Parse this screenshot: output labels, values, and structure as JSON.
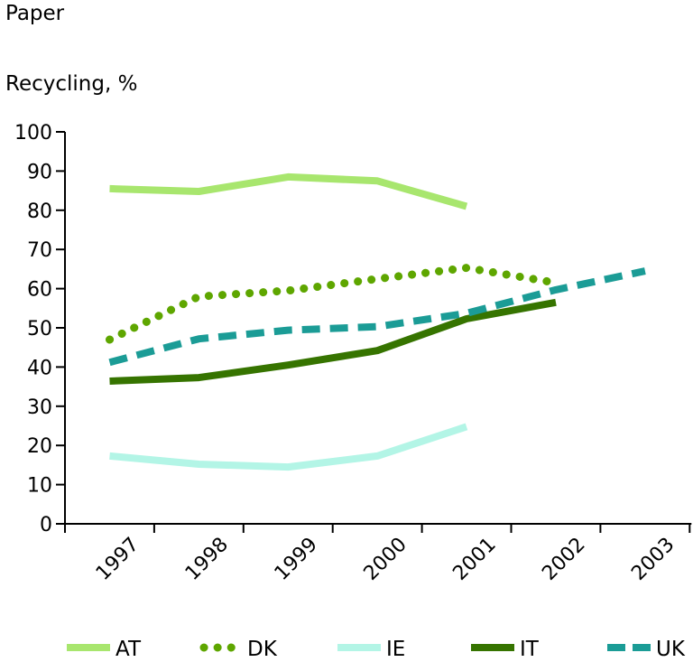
{
  "chart_data": {
    "type": "line",
    "title": "Paper",
    "ylabel": "Recycling, %",
    "xlabel": "",
    "categories": [
      "1997",
      "1998",
      "1999",
      "2000",
      "2001",
      "2002",
      "2003"
    ],
    "ylim": [
      0,
      100
    ],
    "yticks": [
      0,
      10,
      20,
      30,
      40,
      50,
      60,
      70,
      80,
      90,
      100
    ],
    "grid": false,
    "legend_position": "bottom",
    "series": [
      {
        "name": "AT",
        "color": "#a8e66e",
        "style": "solid",
        "values": [
          85.5,
          84.8,
          88.5,
          87.5,
          81,
          null,
          null
        ]
      },
      {
        "name": "DK",
        "color": "#5ea600",
        "style": "dotted",
        "values": [
          47,
          58,
          59.5,
          62.5,
          65.3,
          61.5,
          null
        ]
      },
      {
        "name": "IE",
        "color": "#b3f5e6",
        "style": "solid",
        "values": [
          17.3,
          15.2,
          14.5,
          17.3,
          24.8,
          null,
          null
        ]
      },
      {
        "name": "IT",
        "color": "#367400",
        "style": "solid",
        "values": [
          36.4,
          37.3,
          40.5,
          44.2,
          52.3,
          56.5,
          null
        ]
      },
      {
        "name": "UK",
        "color": "#1b9c96",
        "style": "dashed",
        "values": [
          41.2,
          47.2,
          49.4,
          50.3,
          53.7,
          59.7,
          64.5
        ]
      }
    ]
  }
}
